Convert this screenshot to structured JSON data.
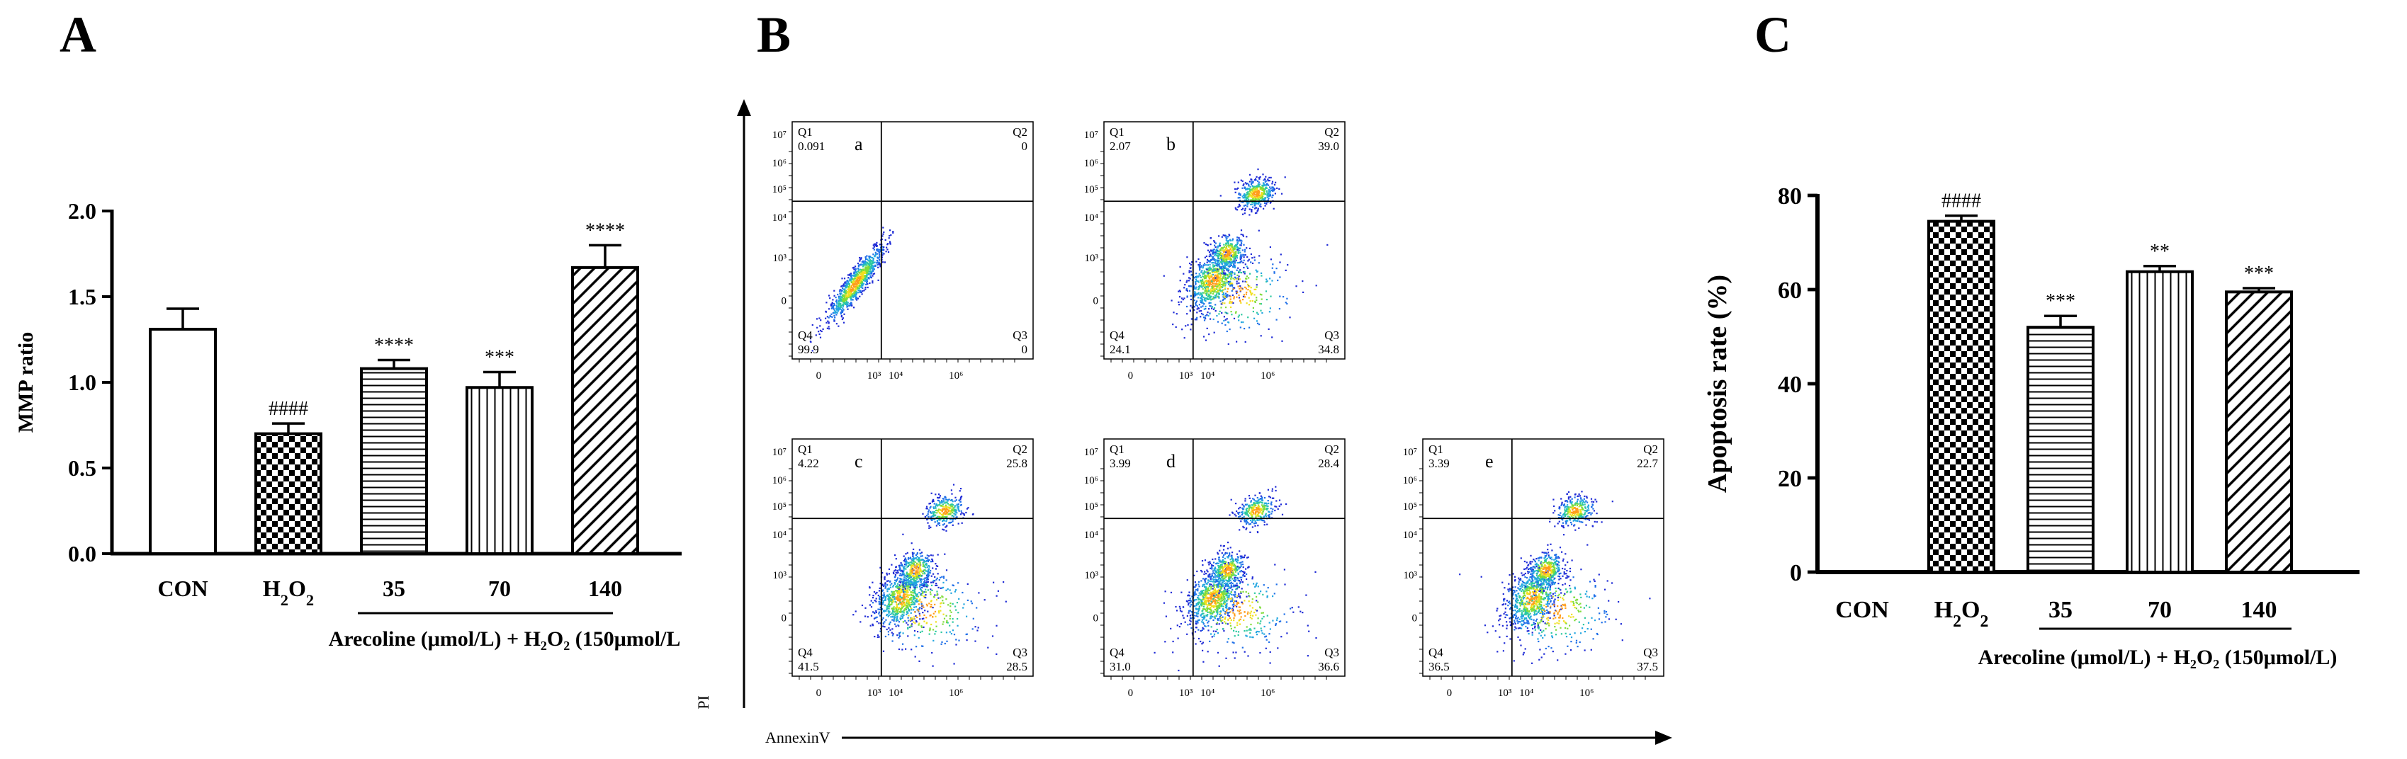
{
  "panels": {
    "a": "A",
    "b": "B",
    "c": "C"
  },
  "chart_data": [
    {
      "panel": "A",
      "type": "bar",
      "ylabel": "MMP ratio",
      "ylim": [
        0,
        2.0
      ],
      "yticks": [
        "0.0",
        "0.5",
        "1.0",
        "1.5",
        "2.0"
      ],
      "categories": [
        "CON",
        "H2O2",
        "35",
        "70",
        "140"
      ],
      "category_labels": [
        "CON",
        "H₂O₂",
        "35",
        "70",
        "140"
      ],
      "values": [
        1.31,
        0.7,
        1.08,
        0.97,
        1.67
      ],
      "errors": [
        0.12,
        0.06,
        0.05,
        0.09,
        0.13
      ],
      "significance": [
        "",
        "####",
        "****",
        "***",
        "****"
      ],
      "patterns": [
        "white",
        "checker",
        "hlines",
        "vlines",
        "diag"
      ],
      "group_label": "Arecoline (μmol/L) + H₂O₂ (150μmol/L"
    },
    {
      "panel": "B",
      "type": "scatter",
      "xlabel": "AnnexinV",
      "ylabel": "PI",
      "tick_labels": {
        "y": [
          "10⁷",
          "10⁶",
          "10⁵",
          "10⁴",
          "10³",
          "0"
        ],
        "x": [
          "0",
          "10³",
          "10⁴",
          "10⁶"
        ]
      },
      "plots": [
        {
          "label": "a",
          "Q1": "0.091",
          "Q2": "0",
          "Q3": "0",
          "Q4": "99.9"
        },
        {
          "label": "b",
          "Q1": "2.07",
          "Q2": "39.0",
          "Q3": "34.8",
          "Q4": "24.1"
        },
        {
          "label": "c",
          "Q1": "4.22",
          "Q2": "25.8",
          "Q3": "28.5",
          "Q4": "41.5"
        },
        {
          "label": "d",
          "Q1": "3.99",
          "Q2": "28.4",
          "Q3": "36.6",
          "Q4": "31.0"
        },
        {
          "label": "e",
          "Q1": "3.39",
          "Q2": "22.7",
          "Q3": "37.5",
          "Q4": "36.5"
        }
      ],
      "quadrant_names": [
        "Q1",
        "Q2",
        "Q3",
        "Q4"
      ]
    },
    {
      "panel": "C",
      "type": "bar",
      "ylabel": "Apoptosis rate (%)",
      "ylim": [
        0,
        80
      ],
      "yticks": [
        "0",
        "20",
        "40",
        "60",
        "80"
      ],
      "categories": [
        "CON",
        "H2O2",
        "35",
        "70",
        "140"
      ],
      "category_labels": [
        "CON",
        "H₂O₂",
        "35",
        "70",
        "140"
      ],
      "values": [
        0,
        74.5,
        52.0,
        63.8,
        59.5
      ],
      "errors": [
        0,
        1.2,
        2.4,
        1.2,
        0.8
      ],
      "significance": [
        "",
        "####",
        "***",
        "**",
        "***"
      ],
      "patterns": [
        "white",
        "checker",
        "hlines",
        "vlines",
        "diag"
      ],
      "group_label": "Arecoline (μmol/L) + H₂O₂ (150μmol/L)"
    }
  ]
}
